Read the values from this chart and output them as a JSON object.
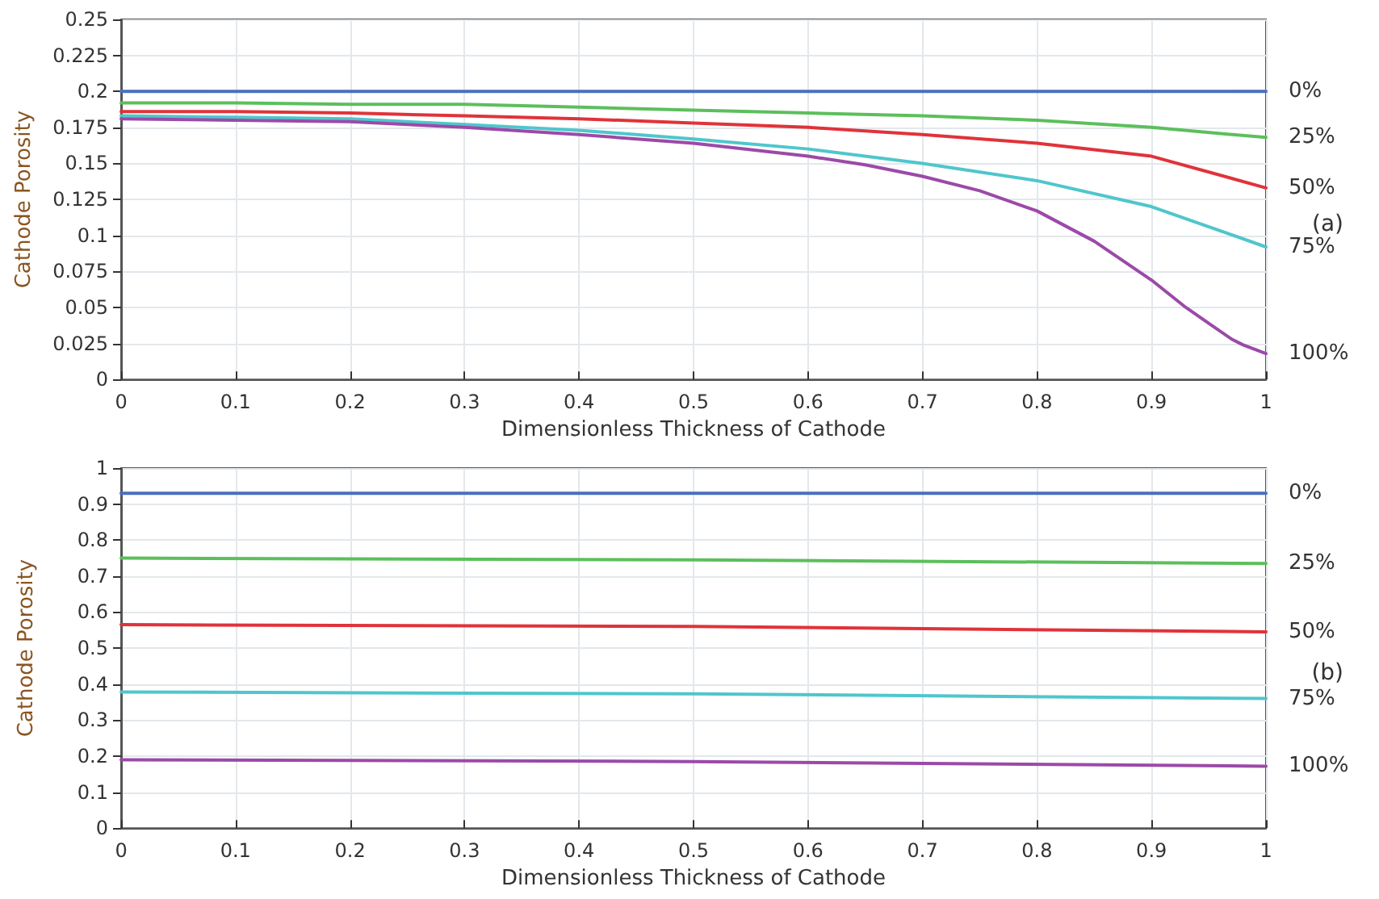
{
  "chart_data": [
    {
      "type": "line",
      "xlabel": "Dimensionless Thickness of Cathode",
      "ylabel": "Cathode Porosity",
      "annotations": [
        "(a)"
      ],
      "xlim": [
        0,
        1
      ],
      "xticks": [
        0,
        0.1,
        0.2,
        0.3,
        0.4,
        0.5,
        0.6,
        0.7,
        0.8,
        0.9,
        1
      ],
      "ylim": [
        0,
        0.25
      ],
      "yticks": [
        0,
        0.025,
        0.05,
        0.075,
        0.1,
        0.125,
        0.15,
        0.175,
        0.2,
        0.225,
        0.25
      ],
      "grid": true,
      "legend": false,
      "marker": "none",
      "line_style": "solid",
      "series": [
        {
          "name": "0%",
          "color": "#4a6fc0",
          "x": [
            0,
            0.5,
            1
          ],
          "values": [
            0.2,
            0.2,
            0.2
          ]
        },
        {
          "name": "25%",
          "color": "#5cbf5c",
          "x": [
            0,
            0.1,
            0.2,
            0.3,
            0.4,
            0.5,
            0.6,
            0.7,
            0.8,
            0.9,
            1
          ],
          "values": [
            0.192,
            0.192,
            0.191,
            0.191,
            0.189,
            0.187,
            0.185,
            0.183,
            0.18,
            0.175,
            0.168
          ]
        },
        {
          "name": "50%",
          "color": "#e0333a",
          "x": [
            0,
            0.1,
            0.2,
            0.3,
            0.4,
            0.5,
            0.6,
            0.7,
            0.8,
            0.9,
            1
          ],
          "values": [
            0.186,
            0.186,
            0.185,
            0.183,
            0.181,
            0.178,
            0.175,
            0.17,
            0.164,
            0.155,
            0.133
          ]
        },
        {
          "name": "75%",
          "color": "#4fc6cc",
          "x": [
            0,
            0.1,
            0.2,
            0.3,
            0.4,
            0.5,
            0.6,
            0.7,
            0.8,
            0.9,
            1
          ],
          "values": [
            0.183,
            0.182,
            0.181,
            0.177,
            0.173,
            0.167,
            0.16,
            0.15,
            0.138,
            0.12,
            0.092
          ]
        },
        {
          "name": "100%",
          "color": "#9b4aa8",
          "x": [
            0,
            0.1,
            0.2,
            0.3,
            0.4,
            0.5,
            0.6,
            0.65,
            0.7,
            0.75,
            0.8,
            0.85,
            0.9,
            0.93,
            0.95,
            0.97,
            0.98,
            1
          ],
          "values": [
            0.181,
            0.18,
            0.179,
            0.175,
            0.17,
            0.164,
            0.155,
            0.149,
            0.141,
            0.131,
            0.117,
            0.096,
            0.069,
            0.05,
            0.039,
            0.028,
            0.024,
            0.018
          ]
        }
      ]
    },
    {
      "type": "line",
      "xlabel": "Dimensionless Thickness of Cathode",
      "ylabel": "Cathode Porosity",
      "annotations": [
        "(b)"
      ],
      "xlim": [
        0,
        1
      ],
      "xticks": [
        0,
        0.1,
        0.2,
        0.3,
        0.4,
        0.5,
        0.6,
        0.7,
        0.8,
        0.9,
        1
      ],
      "ylim": [
        0,
        1
      ],
      "yticks": [
        0,
        0.1,
        0.2,
        0.3,
        0.4,
        0.5,
        0.6,
        0.7,
        0.8,
        0.9,
        1
      ],
      "grid": true,
      "legend": false,
      "marker": "none",
      "line_style": "solid",
      "series": [
        {
          "name": "0%",
          "color": "#4a6fc0",
          "x": [
            0,
            0.5,
            1
          ],
          "values": [
            0.93,
            0.93,
            0.93
          ]
        },
        {
          "name": "25%",
          "color": "#5cbf5c",
          "x": [
            0,
            0.5,
            1
          ],
          "values": [
            0.75,
            0.745,
            0.735
          ]
        },
        {
          "name": "50%",
          "color": "#e0333a",
          "x": [
            0,
            0.5,
            1
          ],
          "values": [
            0.565,
            0.56,
            0.545
          ]
        },
        {
          "name": "75%",
          "color": "#4fc6cc",
          "x": [
            0,
            0.5,
            1
          ],
          "values": [
            0.378,
            0.373,
            0.36
          ]
        },
        {
          "name": "100%",
          "color": "#9b4aa8",
          "x": [
            0,
            0.5,
            1
          ],
          "values": [
            0.19,
            0.185,
            0.172
          ]
        }
      ]
    }
  ]
}
